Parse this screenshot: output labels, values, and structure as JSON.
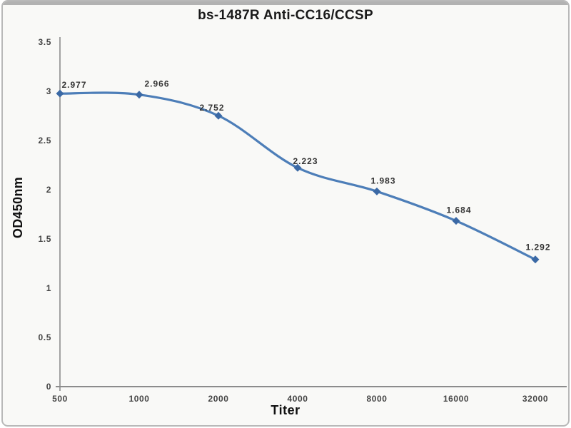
{
  "chart_data": {
    "type": "line",
    "title": "bs-1487R Anti-CC16/CCSP",
    "xlabel": "Titer",
    "ylabel": "OD450nm",
    "categories": [
      "500",
      "1000",
      "2000",
      "4000",
      "8000",
      "16000",
      "32000"
    ],
    "series": [
      {
        "name": "OD450nm",
        "values": [
          2.977,
          2.966,
          2.752,
          2.223,
          1.983,
          1.684,
          1.292
        ]
      }
    ],
    "point_labels": [
      "2.977",
      "2.966",
      "2.752",
      "2.223",
      "1.983",
      "1.684",
      "1.292"
    ],
    "y_ticks": [
      0,
      0.5,
      1,
      1.5,
      2,
      2.5,
      3,
      3.5
    ],
    "y_tick_labels": [
      "0",
      "0.5",
      "1",
      "1.5",
      "2",
      "2.5",
      "3",
      "3.5"
    ],
    "ylim": [
      0,
      3.5
    ],
    "grid": false,
    "legend": "none",
    "line_smooth": true,
    "colors": {
      "line": "#4d7eb8",
      "marker": "#3b69a5",
      "axis": "#8c8c8c",
      "tick_text": "#454545",
      "label_text": "#333333",
      "title_text": "#1a1a1a"
    }
  }
}
